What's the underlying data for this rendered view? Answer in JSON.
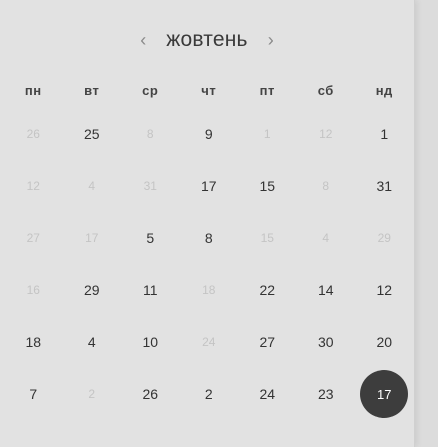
{
  "header": {
    "prev_icon": "‹",
    "month": "жовтень",
    "next_icon": "›"
  },
  "weekdays": [
    "пн",
    "вт",
    "ср",
    "чт",
    "пт",
    "сб",
    "нд"
  ],
  "weeks": [
    [
      {
        "d": "26",
        "m": true
      },
      {
        "d": "25",
        "m": false
      },
      {
        "d": "8",
        "m": true
      },
      {
        "d": "9",
        "m": false
      },
      {
        "d": "1",
        "m": true
      },
      {
        "d": "12",
        "m": true
      },
      {
        "d": "1",
        "m": false
      }
    ],
    [
      {
        "d": "12",
        "m": true
      },
      {
        "d": "4",
        "m": true
      },
      {
        "d": "31",
        "m": true
      },
      {
        "d": "17",
        "m": false
      },
      {
        "d": "15",
        "m": false
      },
      {
        "d": "8",
        "m": true
      },
      {
        "d": "31",
        "m": false
      }
    ],
    [
      {
        "d": "27",
        "m": true
      },
      {
        "d": "17",
        "m": true
      },
      {
        "d": "5",
        "m": false
      },
      {
        "d": "8",
        "m": false
      },
      {
        "d": "15",
        "m": true
      },
      {
        "d": "4",
        "m": true
      },
      {
        "d": "29",
        "m": true
      }
    ],
    [
      {
        "d": "16",
        "m": true
      },
      {
        "d": "29",
        "m": false
      },
      {
        "d": "11",
        "m": false
      },
      {
        "d": "18",
        "m": true
      },
      {
        "d": "22",
        "m": false
      },
      {
        "d": "14",
        "m": false
      },
      {
        "d": "12",
        "m": false
      }
    ],
    [
      {
        "d": "18",
        "m": false
      },
      {
        "d": "4",
        "m": false
      },
      {
        "d": "10",
        "m": false
      },
      {
        "d": "24",
        "m": true
      },
      {
        "d": "27",
        "m": false
      },
      {
        "d": "30",
        "m": false
      },
      {
        "d": "20",
        "m": false
      }
    ],
    [
      {
        "d": "7",
        "m": false
      },
      {
        "d": "2",
        "m": true
      },
      {
        "d": "26",
        "m": false
      },
      {
        "d": "2",
        "m": false
      },
      {
        "d": "24",
        "m": false
      },
      {
        "d": "23",
        "m": false
      },
      {
        "d": "17",
        "m": false,
        "selected": true
      }
    ]
  ],
  "colors": {
    "selected_bg": "#3d3d3d",
    "muted": "#c4c4c4",
    "text": "#333333"
  }
}
